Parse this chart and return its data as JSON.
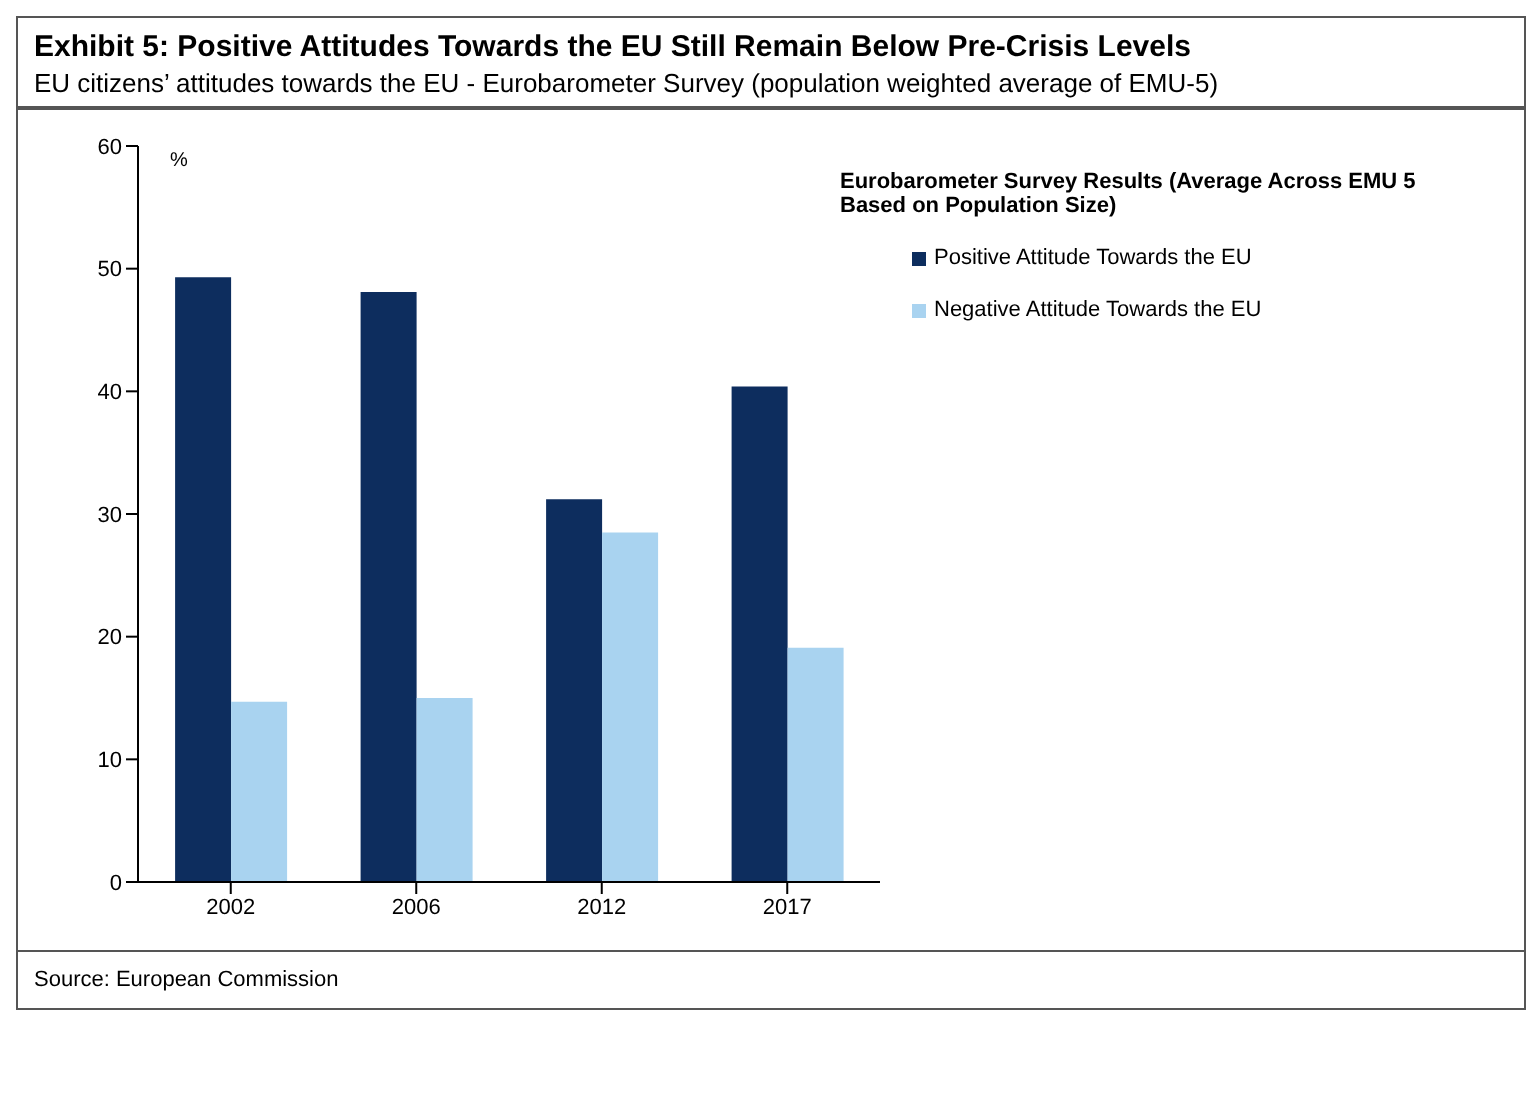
{
  "chart_data": {
    "type": "bar",
    "title": "Exhibit 5: Positive Attitudes Towards the EU Still Remain Below Pre-Crisis Levels",
    "subtitle": "EU citizens’ attitudes towards the EU - Eurobarometer Survey (population weighted average of EMU-5)",
    "ylabel": "%",
    "legend_title": "Eurobarometer Survey Results (Average Across EMU 5 Based on Population Size)",
    "categories": [
      "2002",
      "2006",
      "2012",
      "2017"
    ],
    "series": [
      {
        "name": "Positive Attitude Towards the EU",
        "color": "#0d2d5e",
        "values": [
          49.3,
          48.1,
          31.2,
          40.4
        ]
      },
      {
        "name": "Negative Attitude Towards the EU",
        "color": "#a9d3f0",
        "values": [
          14.7,
          15.0,
          28.5,
          19.1
        ]
      }
    ],
    "ylim": [
      0,
      60
    ],
    "yticks": [
      0,
      10,
      20,
      30,
      40,
      50,
      60
    ],
    "grid": false,
    "legend": "top right",
    "annotations": [
      "Source: European Commission"
    ]
  }
}
